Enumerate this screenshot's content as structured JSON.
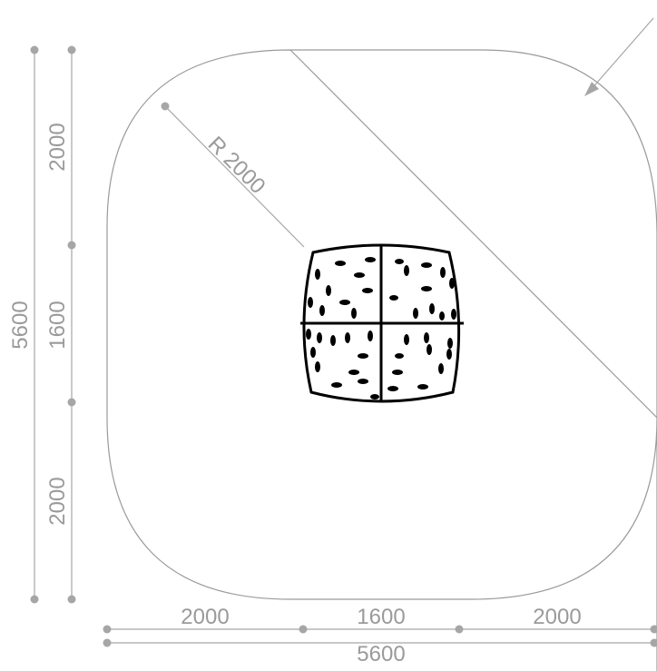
{
  "drawing": {
    "radius_label": "R 2000",
    "vertical": {
      "segment_top": "2000",
      "segment_middle": "1600",
      "segment_bottom": "2000",
      "total": "5600"
    },
    "horizontal": {
      "segment_left": "2000",
      "segment_middle": "1600",
      "segment_right": "2000",
      "total": "5600"
    },
    "colors": {
      "dimension": "#a6a6a6",
      "text": "#9a9a9a",
      "object": "#000000",
      "background": "#ffffff"
    }
  }
}
